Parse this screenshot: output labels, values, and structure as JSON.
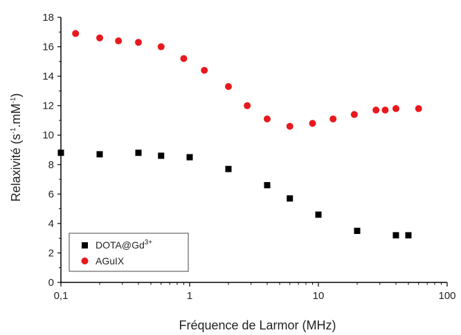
{
  "chart_data": {
    "type": "scatter",
    "xlabel": "Fréquence de Larmor (MHz)",
    "ylabel": "Relaxivité (s-1.mM-1)",
    "ylabel_parts": {
      "main": "Relaxivité (s",
      "sup1": "-1",
      "mid": ".mM",
      "sup2": "-1",
      "end": ")"
    },
    "xscale": "log",
    "xlim": [
      0.1,
      100
    ],
    "ylim": [
      0,
      18
    ],
    "x_tick_labels": [
      "0,1",
      "1",
      "10",
      "100"
    ],
    "y_ticks": [
      0,
      2,
      4,
      6,
      8,
      10,
      12,
      14,
      16,
      18
    ],
    "legend_position": "bottom-left",
    "series": [
      {
        "name": "DOTA@Gd3+",
        "legend_parts": {
          "main": "DOTA@Gd",
          "sup": "3+"
        },
        "marker": "square",
        "color": "#000000",
        "x": [
          0.1,
          0.2,
          0.4,
          0.6,
          1.0,
          2.0,
          4.0,
          6.0,
          10.0,
          20.0,
          40.0,
          50.0
        ],
        "y": [
          8.8,
          8.7,
          8.8,
          8.6,
          8.5,
          7.7,
          6.6,
          5.7,
          4.6,
          3.5,
          3.2,
          3.2
        ]
      },
      {
        "name": "AGuIX",
        "marker": "circle",
        "color": "#e8191e",
        "x": [
          0.13,
          0.2,
          0.28,
          0.4,
          0.6,
          0.9,
          1.3,
          2.0,
          2.8,
          4.0,
          6.0,
          9.0,
          13.0,
          19.0,
          28.0,
          33.0,
          40.0,
          60.0
        ],
        "y": [
          16.9,
          16.6,
          16.4,
          16.3,
          16.0,
          15.2,
          14.4,
          13.3,
          12.0,
          11.1,
          10.6,
          10.8,
          11.1,
          11.4,
          11.7,
          11.7,
          11.8,
          11.8
        ]
      }
    ]
  }
}
